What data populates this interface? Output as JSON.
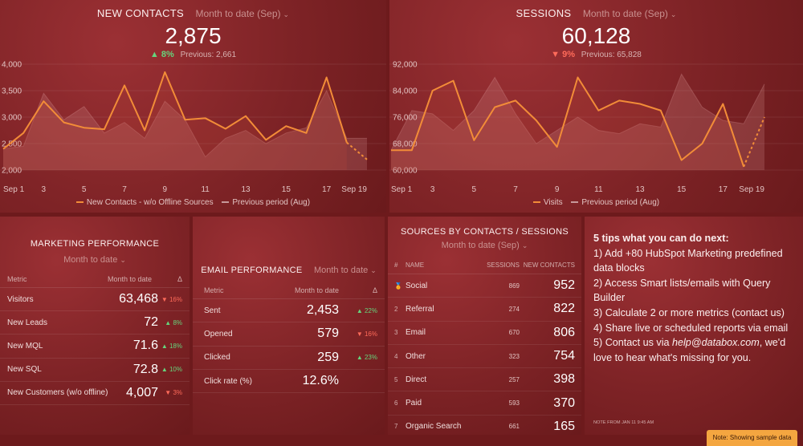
{
  "new_contacts": {
    "title": "NEW CONTACTS",
    "period": "Month to date (Sep)",
    "value": "2,875",
    "delta": "8%",
    "previous": "Previous: 2,661",
    "y_ticks": [
      "4,000",
      "3,500",
      "3,000",
      "2,500",
      "2,000"
    ],
    "x_ticks": [
      "Sep 1",
      "3",
      "5",
      "7",
      "9",
      "11",
      "13",
      "15",
      "17",
      "Sep 19"
    ],
    "legend_current": "New Contacts - w/o Offline Sources",
    "legend_previous": "Previous period (Aug)"
  },
  "sessions": {
    "title": "SESSIONS",
    "period": "Month to date (Sep)",
    "value": "60,128",
    "delta": "9%",
    "previous": "Previous: 65,828",
    "y_ticks": [
      "92,000",
      "84,000",
      "76,000",
      "68,000",
      "60,000"
    ],
    "x_ticks": [
      "Sep 1",
      "3",
      "5",
      "7",
      "9",
      "11",
      "13",
      "15",
      "17",
      "Sep 19"
    ],
    "legend_current": "Visits",
    "legend_previous": "Previous period (Aug)"
  },
  "chart_data": [
    {
      "type": "line",
      "title": "NEW CONTACTS",
      "x": [
        1,
        2,
        3,
        4,
        5,
        6,
        7,
        8,
        9,
        10,
        11,
        12,
        13,
        14,
        15,
        16,
        17,
        18,
        19
      ],
      "ylim": [
        2000,
        4000
      ],
      "series": [
        {
          "name": "New Contacts - w/o Offline Sources",
          "values": [
            2400,
            2700,
            3300,
            2900,
            2800,
            2770,
            3600,
            2750,
            3850,
            2950,
            2980,
            2780,
            3020,
            2570,
            2830,
            2700,
            3750,
            2520,
            2200
          ]
        },
        {
          "name": "Previous period (Aug)",
          "values": [
            2400,
            2450,
            3450,
            2950,
            3200,
            2700,
            2900,
            2600,
            3300,
            2950,
            2250,
            2600,
            2750,
            2500,
            2700,
            2800,
            3500,
            2600,
            2600
          ]
        }
      ]
    },
    {
      "type": "line",
      "title": "SESSIONS",
      "x": [
        1,
        2,
        3,
        4,
        5,
        6,
        7,
        8,
        9,
        10,
        11,
        12,
        13,
        14,
        15,
        16,
        17,
        18,
        19
      ],
      "ylim": [
        60000,
        92000
      ],
      "series": [
        {
          "name": "Visits",
          "values": [
            66000,
            66000,
            84000,
            87000,
            69000,
            79000,
            81000,
            75000,
            67000,
            88000,
            78000,
            81000,
            80000,
            78000,
            63000,
            68000,
            80000,
            61000,
            76000
          ]
        },
        {
          "name": "Previous period (Aug)",
          "values": [
            66000,
            78000,
            77000,
            72000,
            78000,
            88000,
            77000,
            68000,
            72000,
            76000,
            72000,
            71000,
            74000,
            73000,
            89000,
            79000,
            75000,
            74000,
            86000
          ]
        }
      ]
    }
  ],
  "marketing": {
    "title": "MARKETING PERFORMANCE",
    "period": "Month to date",
    "col_metric": "Metric",
    "col_value": "Month to date",
    "col_delta": "Δ",
    "rows": [
      {
        "label": "Visitors",
        "value": "63,468",
        "delta": "▼ 16%",
        "dir": "down"
      },
      {
        "label": "New Leads",
        "value": "72",
        "delta": "▲ 8%",
        "dir": "up"
      },
      {
        "label": "New MQL",
        "value": "71.6",
        "delta": "▲ 18%",
        "dir": "up"
      },
      {
        "label": "New SQL",
        "value": "72.8",
        "delta": "▲ 10%",
        "dir": "up"
      },
      {
        "label": "New Customers (w/o offline)",
        "value": "4,007",
        "delta": "▼ 3%",
        "dir": "down"
      }
    ]
  },
  "email": {
    "title": "EMAIL PERFORMANCE",
    "period": "Month to date",
    "col_metric": "Metric",
    "col_value": "Month to date",
    "col_delta": "Δ",
    "rows": [
      {
        "label": "Sent",
        "value": "2,453",
        "delta": "▲ 22%",
        "dir": "up"
      },
      {
        "label": "Opened",
        "value": "579",
        "delta": "▼ 16%",
        "dir": "down"
      },
      {
        "label": "Clicked",
        "value": "259",
        "delta": "▲ 23%",
        "dir": "up"
      },
      {
        "label": "Click rate (%)",
        "value": "12.6%",
        "delta": "",
        "dir": "none"
      }
    ]
  },
  "sources": {
    "title": "SOURCES BY CONTACTS / SESSIONS",
    "period": "Month to date (Sep)",
    "col_num": "#",
    "col_name": "NAME",
    "col_sessions": "SESSIONS",
    "col_contacts": "NEW CONTACTS",
    "rows": [
      {
        "num": "",
        "name": "Social",
        "sessions": "869",
        "contacts": "952"
      },
      {
        "num": "2",
        "name": "Referral",
        "sessions": "274",
        "contacts": "822"
      },
      {
        "num": "3",
        "name": "Email",
        "sessions": "670",
        "contacts": "806"
      },
      {
        "num": "4",
        "name": "Other",
        "sessions": "323",
        "contacts": "754"
      },
      {
        "num": "5",
        "name": "Direct",
        "sessions": "257",
        "contacts": "398"
      },
      {
        "num": "6",
        "name": "Paid",
        "sessions": "593",
        "contacts": "370"
      },
      {
        "num": "7",
        "name": "Organic Search",
        "sessions": "661",
        "contacts": "165"
      }
    ]
  },
  "tips": {
    "heading": "5 tips what you can do next:",
    "lines": [
      "1) Add +80 HubSpot Marketing predefined data blocks",
      "2) Access Smart lists/emails with Query Builder",
      "3) Calculate 2 or more metrics (contact us)",
      "4) Share live or scheduled reports via email"
    ],
    "line5_prefix": "5) Contact us via ",
    "line5_email": "help@databox.com",
    "line5_suffix": ", we'd love to hear what's missing for you.",
    "note": "NOTE FROM JAN 11 9:45 AM"
  },
  "sample_badge": "Note: Showing sample data",
  "colors": {
    "accent": "#f28c38",
    "up": "#66d47c",
    "down": "#ff6b5a",
    "background": "#6d1a1c"
  }
}
